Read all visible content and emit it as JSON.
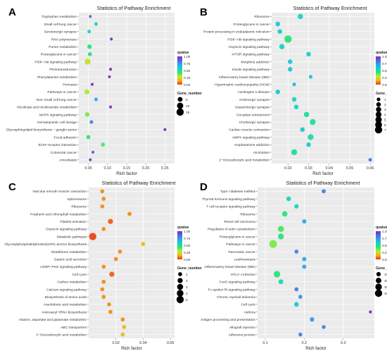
{
  "figure": {
    "panels": [
      "A",
      "B",
      "C",
      "D"
    ]
  },
  "colorbar_colors": [
    "#7b2fbe",
    "#5a63e0",
    "#2aa6f0",
    "#13d2c9",
    "#2ee66f",
    "#b8ee2a",
    "#f5b21c",
    "#e83417"
  ],
  "chart_data": [
    {
      "panel_label": "A",
      "type": "scatter",
      "title": "Statistics of Pathway Enrichment",
      "xlabel": "Rich factor",
      "ylabel": "",
      "xlim": [
        0.025,
        0.275
      ],
      "xticks": [
        0.05,
        0.1,
        0.15,
        0.2,
        0.25
      ],
      "xtick_labels": [
        "0.05",
        "0.10",
        "0.15",
        "0.20",
        "0.25"
      ],
      "categories": [
        "Tryptophan metabolism",
        "Small cell lung cancer",
        "Serotonergic synapse",
        "RNA polymerase",
        "Purine metabolism",
        "Proteoglycans in cancer",
        "PI3K−Akt signaling pathway",
        "Phototransduction",
        "Phenylalanine metabolism",
        "Pertussis",
        "Pathways in cancer",
        "Non−small cell lung cancer",
        "Nicotinate and nicotinamide metabolism",
        "MAPK signaling pathway",
        "Hematopoietic cell lineage",
        "Glycosphingolipid biosynthesis − ganglio series",
        "Focal adhesion",
        "ECM−receptor interaction",
        "Colorectal cancer",
        "Amoebiasis"
      ],
      "x": [
        0.055,
        0.07,
        0.052,
        0.11,
        0.053,
        0.054,
        0.048,
        0.108,
        0.105,
        0.06,
        0.046,
        0.07,
        0.108,
        0.047,
        0.058,
        0.25,
        0.05,
        0.088,
        0.062,
        0.055
      ],
      "gene_number": [
        1,
        2,
        2,
        1,
        4,
        3,
        9,
        1,
        1,
        1,
        6,
        2,
        1,
        4,
        2,
        1,
        3,
        3,
        1,
        1
      ],
      "qvalue": [
        0.85,
        0.55,
        0.55,
        1.0,
        0.45,
        0.45,
        0.25,
        1.0,
        1.0,
        1.0,
        0.3,
        0.7,
        1.0,
        0.35,
        0.8,
        1.0,
        0.45,
        0.4,
        0.9,
        0.95
      ],
      "legend": {
        "qvalue_title": "qvalue",
        "qvalue_ticks": [
          "1.00",
          "0.75",
          "0.50",
          "0.25",
          "0.00"
        ],
        "size_title": "Gene_number",
        "size_entries": [
          "5",
          "10",
          "15"
        ],
        "size_values": [
          5,
          10,
          15
        ],
        "placement": "right"
      }
    },
    {
      "panel_label": "B",
      "type": "scatter",
      "title": "Statistics of Pathway Enrichment",
      "xlabel": "Rich factor",
      "ylabel": "",
      "xlim": [
        0.012,
        0.062
      ],
      "xticks": [
        0.02,
        0.03,
        0.04,
        0.05,
        0.06
      ],
      "xtick_labels": [
        "0.02",
        "0.03",
        "0.04",
        "0.05",
        "0.06"
      ],
      "categories": [
        "Ribosome",
        "Proteoglycans in cancer",
        "Protein processing in endoplasmic reticulum",
        "PI3K−Akt signaling pathway",
        "Oxytocin signaling pathway",
        "mTOR signaling pathway",
        "Morphine addiction",
        "Insulin signaling pathway",
        "Inflammatory bowel disease (IBD)",
        "Hypertrophic cardiomyopathy (HCM)",
        "Huntington s disease",
        "GABAergic synapse",
        "Dopaminergic synapse",
        "Circadian entrainment",
        "Cholinergic synapse",
        "Cardiac muscle contraction",
        "AMPK signaling pathway",
        "Amphetamine addiction",
        "Alcoholism",
        "2−Oxocarboxylic acid metabolism"
      ],
      "x": [
        0.026,
        0.015,
        0.016,
        0.02,
        0.017,
        0.03,
        0.021,
        0.021,
        0.031,
        0.023,
        0.015,
        0.023,
        0.024,
        0.029,
        0.032,
        0.027,
        0.031,
        0.03,
        0.023,
        0.06
      ],
      "gene_number": [
        3,
        2,
        2,
        7,
        3,
        2,
        2,
        2,
        1,
        1,
        2,
        2,
        2,
        3,
        4,
        2,
        4,
        2,
        4,
        1
      ],
      "qvalue": [
        0.55,
        0.6,
        0.6,
        0.45,
        0.55,
        0.6,
        0.6,
        0.6,
        0.65,
        0.65,
        0.6,
        0.55,
        0.55,
        0.5,
        0.5,
        0.6,
        0.5,
        0.6,
        0.5,
        0.8
      ],
      "legend": {
        "qvalue_title": "qvalue",
        "qvalue_ticks": [
          "1.00",
          "0.75",
          "0.50",
          "0.25",
          "0.00"
        ],
        "size_title": "Gene_number",
        "size_entries": [
          "1",
          "2",
          "3",
          "4",
          "5",
          "6",
          "7"
        ],
        "size_values": [
          1,
          2,
          3,
          4,
          5,
          6,
          7
        ],
        "placement": "right"
      }
    },
    {
      "panel_label": "C",
      "type": "scatter",
      "title": "Statistics of Pathway Enrichment",
      "xlabel": "Rich factor",
      "ylabel": "",
      "xlim": [
        0.0,
        0.063
      ],
      "xticks": [
        0.02,
        0.04,
        0.06
      ],
      "xtick_labels": [
        "0.02",
        "0.04",
        "0.06"
      ],
      "categories": [
        "Vascular smooth muscle contraction",
        "Spliceosome",
        "Ribosome",
        "Porphyrin and chlorophyll metabolism",
        "Platelet activation",
        "Oxytocin signaling pathway",
        "Metabolic pathways",
        "Glycosylphosphatidylinositol(GPI)−anchor biosynthesis",
        "Glutathione metabolism",
        "Gastric acid secretion",
        "cGMP−PKG signaling pathway",
        "Cell cycle",
        "Carbon metabolism",
        "Calcium signaling pathway",
        "Biosynthesis of amino acids",
        "Arachidonic acid metabolism",
        "Aminoacyl−tRNA biosynthesis",
        "Alanine, aspartate and glutamate metabolism",
        "ABC transporters",
        "2−Oxocarboxylic acid metabolism"
      ],
      "x": [
        0.01,
        0.011,
        0.01,
        0.03,
        0.016,
        0.011,
        0.003,
        0.04,
        0.023,
        0.02,
        0.011,
        0.017,
        0.011,
        0.01,
        0.011,
        0.015,
        0.016,
        0.025,
        0.026,
        0.025
      ],
      "gene_number": [
        1,
        1,
        1,
        1,
        2,
        1,
        5,
        1,
        1,
        1,
        1,
        2,
        1,
        1,
        1,
        1,
        1,
        1,
        1,
        1
      ],
      "qvalue": [
        0.1,
        0.1,
        0.1,
        0.1,
        0.05,
        0.1,
        0.02,
        0.15,
        0.1,
        0.1,
        0.1,
        0.05,
        0.1,
        0.1,
        0.1,
        0.1,
        0.1,
        0.1,
        0.15,
        0.15
      ],
      "legend": {
        "qvalue_title": "qvalue",
        "qvalue_ticks": [
          "1.00",
          "0.75",
          "0.50",
          "0.25",
          "0.00"
        ],
        "size_title": "Gene_number",
        "size_entries": [
          "1",
          "2",
          "3",
          "4",
          "5"
        ],
        "size_values": [
          1,
          2,
          3,
          4,
          5
        ],
        "placement": "right"
      }
    },
    {
      "panel_label": "D",
      "type": "scatter",
      "title": "Statistics of Pathway Enrichment",
      "xlabel": "Rich factor",
      "ylabel": "",
      "xlim": [
        0.08,
        0.38
      ],
      "xticks": [
        0.1,
        0.2,
        0.3
      ],
      "xtick_labels": [
        "0.1",
        "0.2",
        "0.3"
      ],
      "categories": [
        "Type I diabetes mellitus",
        "Thyroid hormone signaling pathway",
        "T cell receptor signaling pathway",
        "Ribosome",
        "Renal cell carcinoma",
        "Regulation of actin cytoskeleton",
        "Proteoglycans in cancer",
        "Pathways in cancer",
        "Pancreatic cancer",
        "Leishmaniasis",
        "Inflammatory bowel disease (IBD)",
        "HTLV−I infection",
        "FoxO signaling pathway",
        "Fc epsilon RI signaling pathway",
        "Chronic myeloid leukemia",
        "Cell cycle",
        "Asthma",
        "Antigen processing and presentation",
        "Allograft rejection",
        "Adherens junction"
      ],
      "x": [
        0.25,
        0.16,
        0.18,
        0.15,
        0.2,
        0.14,
        0.14,
        0.12,
        0.18,
        0.2,
        0.2,
        0.13,
        0.14,
        0.18,
        0.19,
        0.18,
        0.37,
        0.22,
        0.25,
        0.19
      ],
      "gene_number": [
        8,
        12,
        10,
        18,
        9,
        25,
        22,
        45,
        8,
        9,
        9,
        30,
        13,
        8,
        8,
        12,
        3,
        10,
        7,
        7
      ],
      "qvalue": [
        0.8,
        0.55,
        0.55,
        0.45,
        0.7,
        0.4,
        0.45,
        0.35,
        0.8,
        0.7,
        0.7,
        0.45,
        0.55,
        0.8,
        0.75,
        0.6,
        1.0,
        0.75,
        0.8,
        0.8
      ],
      "legend": {
        "qvalue_title": "qvalue",
        "qvalue_ticks": [
          "1.00",
          "0.75",
          "0.50",
          "0.25",
          "0.00"
        ],
        "size_title": "Gene_number",
        "size_entries": [
          "10",
          "20",
          "30",
          "40"
        ],
        "size_values": [
          10,
          20,
          30,
          40
        ],
        "placement": "right"
      }
    }
  ]
}
